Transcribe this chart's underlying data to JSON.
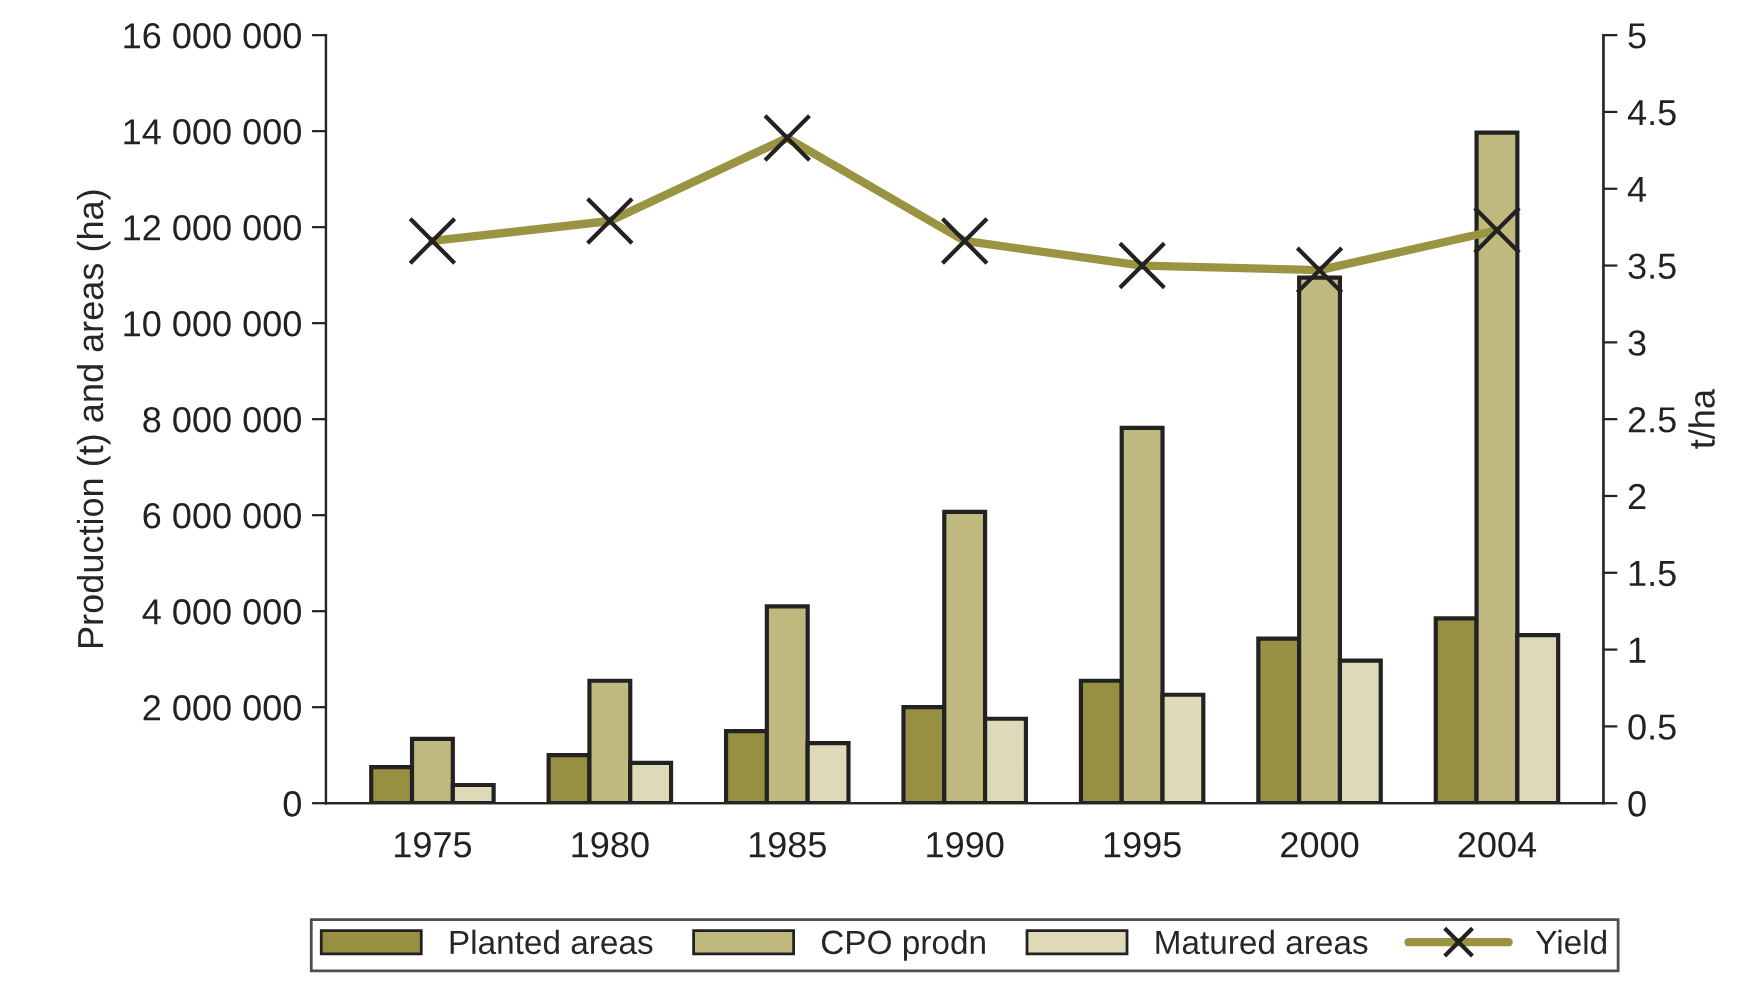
{
  "chart_data": {
    "type": "bar",
    "ylabel": "Production (t) and areas (ha)",
    "y2label": "t/ha",
    "categories": [
      "1975",
      "1980",
      "1985",
      "1990",
      "1995",
      "2000",
      "2004"
    ],
    "series": [
      {
        "name": "Planted areas",
        "color": "#978f42",
        "values": [
          750000,
          1000000,
          1500000,
          2000000,
          2550000,
          3430000,
          3850000
        ]
      },
      {
        "name": "CPO prodn",
        "color": "#c0b97f",
        "values": [
          1340000,
          2550000,
          4100000,
          6070000,
          7820000,
          10950000,
          13970000
        ]
      },
      {
        "name": "Matured areas",
        "color": "#dedab8",
        "values": [
          380000,
          840000,
          1250000,
          1760000,
          2260000,
          2970000,
          3500000
        ]
      },
      {
        "name": "Yield",
        "type": "line",
        "axis": "y2",
        "color": "#9a9442",
        "marker": "cross",
        "values": [
          3.66,
          3.79,
          4.33,
          3.66,
          3.5,
          3.47,
          3.73
        ]
      }
    ],
    "ylim": [
      0,
      16000000
    ],
    "yticks": [
      0,
      {
        "value": 2000000,
        "label": "2 000 000"
      },
      {
        "value": 4000000,
        "label": "4 000 000"
      },
      {
        "value": 6000000,
        "label": "6 000 000"
      },
      {
        "value": 8000000,
        "label": "8 000 000"
      },
      {
        "value": 10000000,
        "label": "10 000 000"
      },
      {
        "value": 12000000,
        "label": "12 000 000"
      },
      {
        "value": 14000000,
        "label": "14 000 000"
      },
      {
        "value": 16000000,
        "label": "16 000 000"
      }
    ],
    "y2lim": [
      0,
      5
    ],
    "y2ticks": [
      0,
      0.5,
      1,
      1.5,
      2,
      2.5,
      3,
      3.5,
      4,
      4.5,
      5
    ],
    "grid": false,
    "legend": "bottom"
  }
}
